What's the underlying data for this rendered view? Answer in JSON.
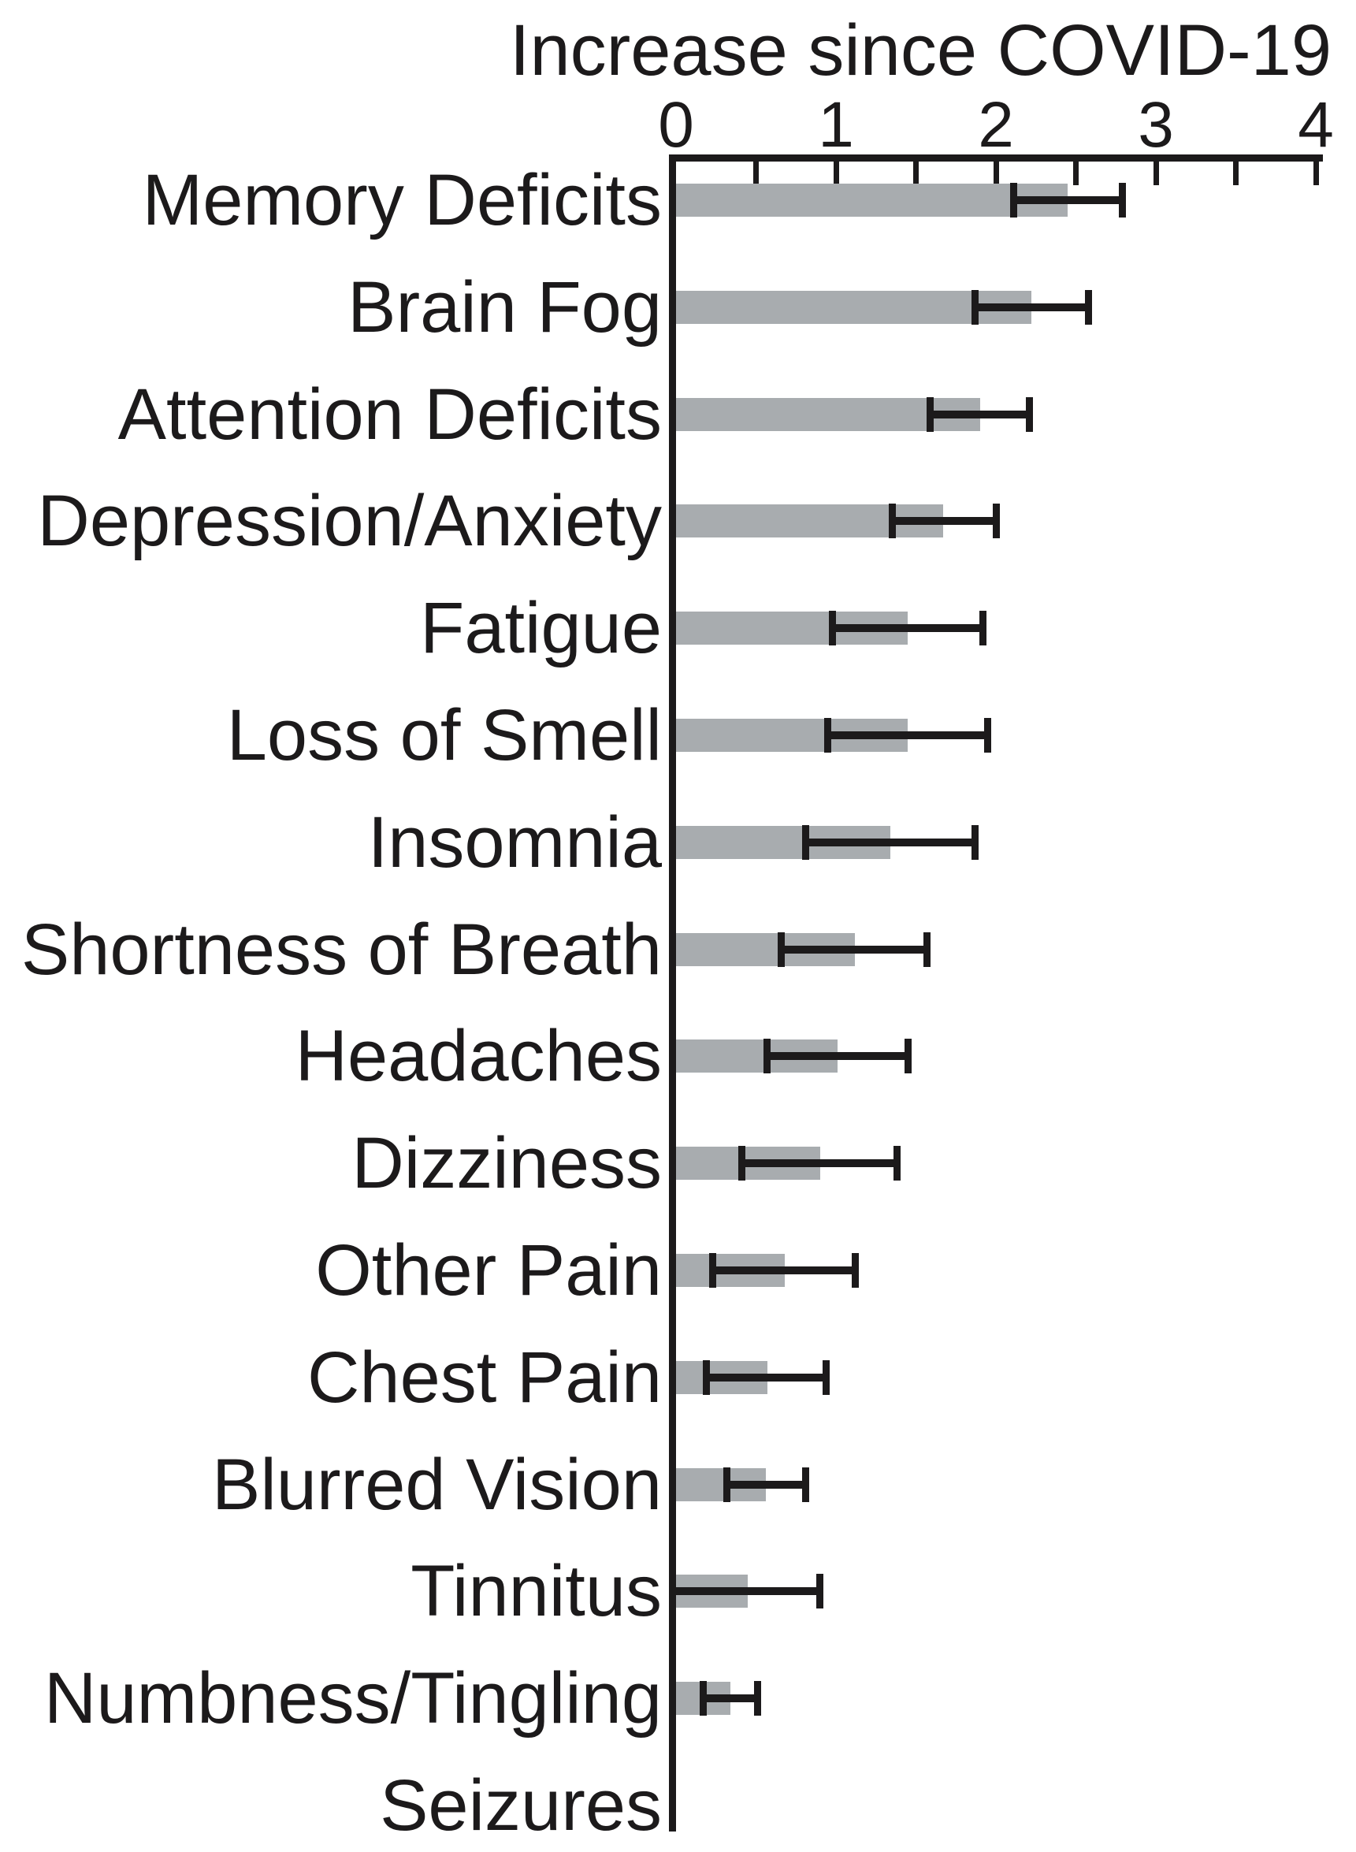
{
  "chart_data": {
    "type": "bar",
    "orientation": "horizontal",
    "title": "Increase since COVID-19",
    "xlabel": "",
    "ylabel": "",
    "xlim": [
      0,
      4
    ],
    "x_ticks": [
      0,
      1,
      2,
      3,
      4
    ],
    "minor_tick_step": 0.5,
    "grid": false,
    "legend": false,
    "bar_color": "#a8acaf",
    "axis_color": "#1c1a1b",
    "categories": [
      "Memory Deficits",
      "Brain Fog",
      "Attention Deficits",
      "Depression/Anxiety",
      "Fatigue",
      "Loss of Smell",
      "Insomnia",
      "Shortness of Breath",
      "Headaches",
      "Dizziness",
      "Other Pain",
      "Chest Pain",
      "Blurred Vision",
      "Tinnitus",
      "Numbness/Tingling",
      "Seizures"
    ],
    "values": [
      2.45,
      2.22,
      1.9,
      1.67,
      1.45,
      1.45,
      1.34,
      1.12,
      1.01,
      0.9,
      0.68,
      0.57,
      0.56,
      0.45,
      0.34,
      0
    ],
    "error_low": [
      2.11,
      1.87,
      1.59,
      1.35,
      0.98,
      0.95,
      0.81,
      0.66,
      0.57,
      0.41,
      0.23,
      0.19,
      0.32,
      0.0,
      0.17,
      null
    ],
    "error_high": [
      2.79,
      2.58,
      2.21,
      2.0,
      1.92,
      1.95,
      1.87,
      1.57,
      1.45,
      1.38,
      1.12,
      0.94,
      0.81,
      0.9,
      0.51,
      null
    ]
  }
}
